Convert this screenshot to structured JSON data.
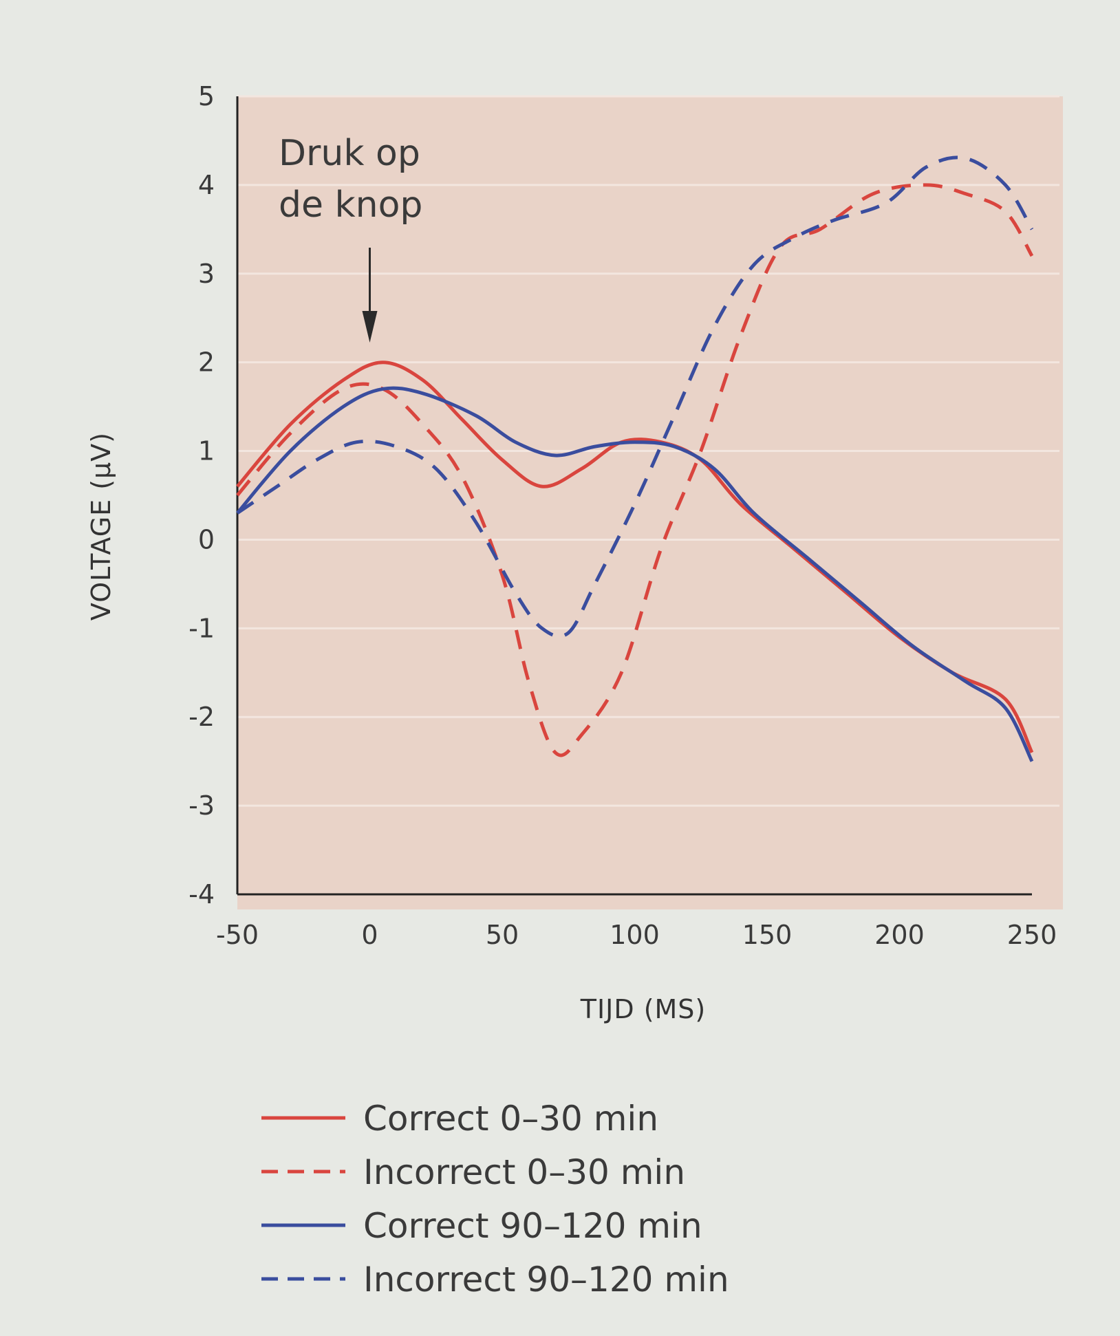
{
  "chart_data": {
    "type": "line",
    "xlabel": "TIJD (MS)",
    "ylabel": "VOLTAGE (µV)",
    "xlim": [
      -50,
      250
    ],
    "ylim": [
      -4,
      5
    ],
    "x_ticks": [
      "-50",
      "0",
      "50",
      "100",
      "150",
      "200",
      "250"
    ],
    "y_ticks": [
      "5",
      "4",
      "3",
      "2",
      "1",
      "0",
      "-1",
      "-2",
      "-3",
      "-4"
    ],
    "grid": "faint horizontal lines",
    "legend_position": "bottom",
    "annotation": {
      "lines": [
        "Druk op",
        "de knop"
      ],
      "x": 0
    },
    "series": [
      {
        "name": "Correct 0–30 min",
        "color": "#d9453e",
        "dash": false,
        "points": [
          [
            -50,
            0.6
          ],
          [
            -30,
            1.3
          ],
          [
            -10,
            1.8
          ],
          [
            5,
            2.0
          ],
          [
            20,
            1.8
          ],
          [
            35,
            1.35
          ],
          [
            50,
            0.9
          ],
          [
            65,
            0.6
          ],
          [
            80,
            0.8
          ],
          [
            95,
            1.1
          ],
          [
            110,
            1.1
          ],
          [
            125,
            0.9
          ],
          [
            140,
            0.4
          ],
          [
            160,
            -0.1
          ],
          [
            180,
            -0.6
          ],
          [
            200,
            -1.1
          ],
          [
            220,
            -1.5
          ],
          [
            240,
            -1.8
          ],
          [
            250,
            -2.4
          ]
        ]
      },
      {
        "name": "Incorrect 0–30 min",
        "color": "#d9453e",
        "dash": true,
        "points": [
          [
            -50,
            0.5
          ],
          [
            -30,
            1.2
          ],
          [
            -10,
            1.7
          ],
          [
            5,
            1.7
          ],
          [
            20,
            1.3
          ],
          [
            35,
            0.7
          ],
          [
            50,
            -0.4
          ],
          [
            60,
            -1.6
          ],
          [
            70,
            -2.4
          ],
          [
            80,
            -2.2
          ],
          [
            95,
            -1.5
          ],
          [
            110,
            -0.1
          ],
          [
            125,
            1.0
          ],
          [
            140,
            2.3
          ],
          [
            155,
            3.3
          ],
          [
            170,
            3.5
          ],
          [
            190,
            3.9
          ],
          [
            210,
            4.0
          ],
          [
            225,
            3.9
          ],
          [
            240,
            3.7
          ],
          [
            250,
            3.2
          ]
        ]
      },
      {
        "name": "Correct 90–120 min",
        "color": "#3a4d9e",
        "dash": false,
        "points": [
          [
            -50,
            0.3
          ],
          [
            -30,
            1.0
          ],
          [
            -10,
            1.5
          ],
          [
            5,
            1.7
          ],
          [
            20,
            1.65
          ],
          [
            40,
            1.4
          ],
          [
            55,
            1.1
          ],
          [
            70,
            0.95
          ],
          [
            85,
            1.05
          ],
          [
            100,
            1.1
          ],
          [
            115,
            1.05
          ],
          [
            130,
            0.8
          ],
          [
            145,
            0.3
          ],
          [
            165,
            -0.2
          ],
          [
            185,
            -0.7
          ],
          [
            205,
            -1.2
          ],
          [
            225,
            -1.6
          ],
          [
            240,
            -1.9
          ],
          [
            250,
            -2.5
          ]
        ]
      },
      {
        "name": "Incorrect 90–120 min",
        "color": "#3a4d9e",
        "dash": true,
        "points": [
          [
            -50,
            0.3
          ],
          [
            -35,
            0.6
          ],
          [
            -20,
            0.9
          ],
          [
            -5,
            1.1
          ],
          [
            10,
            1.05
          ],
          [
            25,
            0.8
          ],
          [
            40,
            0.2
          ],
          [
            55,
            -0.6
          ],
          [
            65,
            -1.0
          ],
          [
            75,
            -1.05
          ],
          [
            85,
            -0.5
          ],
          [
            100,
            0.4
          ],
          [
            115,
            1.4
          ],
          [
            130,
            2.4
          ],
          [
            145,
            3.1
          ],
          [
            160,
            3.4
          ],
          [
            175,
            3.6
          ],
          [
            195,
            3.8
          ],
          [
            210,
            4.2
          ],
          [
            225,
            4.3
          ],
          [
            240,
            4.0
          ],
          [
            250,
            3.5
          ]
        ]
      }
    ]
  }
}
